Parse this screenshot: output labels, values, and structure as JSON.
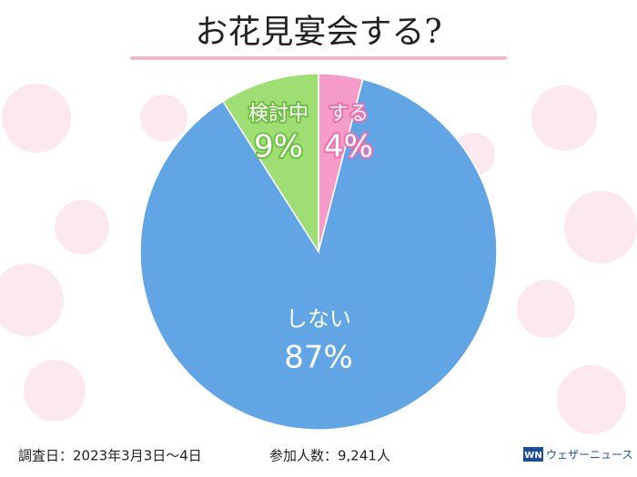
{
  "chart_data": {
    "type": "pie",
    "title": "お花見宴会する?",
    "categories": [
      "する",
      "しない",
      "検討中"
    ],
    "values": [
      4,
      87,
      9
    ],
    "value_labels": [
      "4%",
      "87%",
      "9%"
    ],
    "colors": [
      "#f59cc8",
      "#62a5e4",
      "#9ede73"
    ],
    "note": "調査日：2023年3月3日〜4日",
    "sample": "参加人数：9,241人",
    "logo": {
      "mark": "WN",
      "text": "ウェザーニュース"
    }
  }
}
